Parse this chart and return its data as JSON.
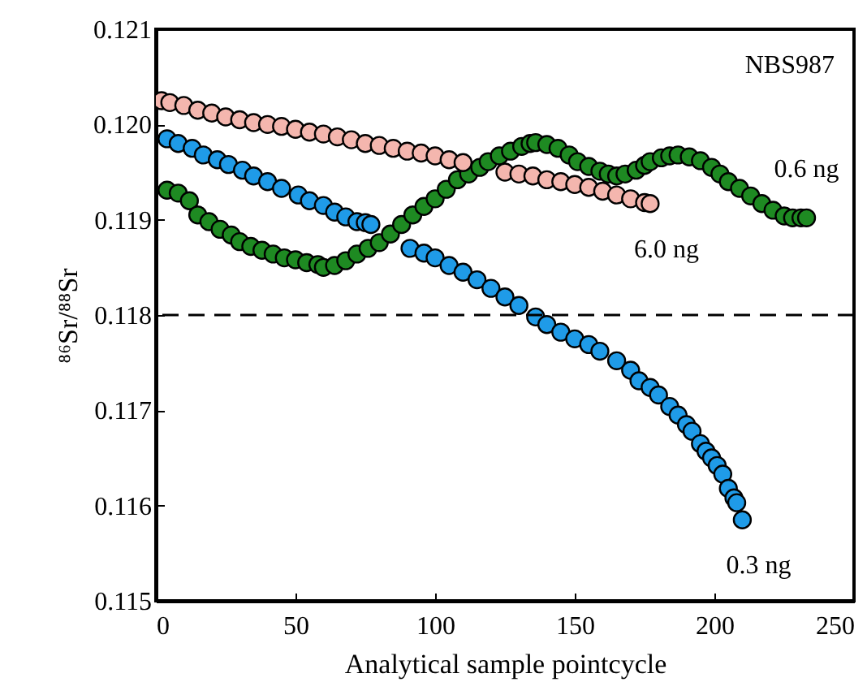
{
  "chart_data": {
    "type": "scatter",
    "xlabel": "Analytical sample pointcycle",
    "ylabel": "⁸⁶Sr/⁸⁸Sr",
    "annotations": [
      "NBS987"
    ],
    "xlim": [
      0,
      250
    ],
    "xticks": [
      0,
      50,
      100,
      150,
      200,
      250
    ],
    "ylim": [
      0.115,
      0.121
    ],
    "yticks": [
      0.115,
      0.116,
      0.117,
      0.118,
      0.119,
      {
        "value": 0.12,
        "label": "0.120"
      },
      0.121
    ],
    "grid": false,
    "marker": "circle",
    "ref_lines": [
      {
        "axis": "y",
        "value": 0.118,
        "line_style": "dashed",
        "color": "#000000"
      }
    ],
    "series": [
      {
        "name": "0.6 ng",
        "color": "#1e8a22",
        "x": [
          4,
          8,
          12,
          15,
          19,
          23,
          27,
          30,
          34,
          38,
          42,
          46,
          50,
          54,
          58,
          60,
          64,
          68,
          72,
          76,
          80,
          84,
          88,
          92,
          96,
          100,
          104,
          108,
          112,
          116,
          119,
          123,
          127,
          131,
          134,
          136,
          140,
          144,
          148,
          151,
          155,
          159,
          162,
          165,
          168,
          172,
          175,
          177,
          181,
          184,
          187,
          191,
          195,
          199,
          202,
          205,
          209,
          213,
          217,
          221,
          225,
          228,
          231,
          233
        ],
        "values": [
          0.11931,
          0.11928,
          0.1192,
          0.11905,
          0.11898,
          0.1189,
          0.11884,
          0.11877,
          0.11872,
          0.11868,
          0.11864,
          0.1186,
          0.11858,
          0.11855,
          0.11853,
          0.1185,
          0.11852,
          0.11857,
          0.11864,
          0.1187,
          0.11876,
          0.11885,
          0.11895,
          0.11905,
          0.11914,
          0.11922,
          0.11932,
          0.11942,
          0.11948,
          0.11955,
          0.11961,
          0.11967,
          0.11972,
          0.11977,
          0.1198,
          0.11981,
          0.11979,
          0.11975,
          0.11968,
          0.11961,
          0.11956,
          0.11951,
          0.11948,
          0.11946,
          0.11948,
          0.11952,
          0.11957,
          0.11961,
          0.11965,
          0.11967,
          0.11968,
          0.11966,
          0.11962,
          0.11955,
          0.11948,
          0.1194,
          0.11933,
          0.11925,
          0.11917,
          0.1191,
          0.11904,
          0.11902,
          0.11902,
          0.11902
        ]
      },
      {
        "name": "6.0 ng",
        "color": "#f4b6ae",
        "x": [
          2,
          5,
          10,
          15,
          20,
          25,
          30,
          35,
          40,
          45,
          50,
          55,
          60,
          65,
          70,
          75,
          80,
          85,
          90,
          95,
          100,
          105,
          110,
          125,
          130,
          135,
          140,
          145,
          150,
          155,
          160,
          165,
          170,
          175,
          177
        ],
        "values": [
          0.12025,
          0.12023,
          0.1202,
          0.12015,
          0.12012,
          0.12008,
          0.12005,
          0.12002,
          0.12,
          0.11998,
          0.11995,
          0.11992,
          0.1199,
          0.11987,
          0.11984,
          0.1198,
          0.11978,
          0.11975,
          0.11972,
          0.1197,
          0.11967,
          0.11963,
          0.1196,
          0.1195,
          0.11948,
          0.11946,
          0.11942,
          0.1194,
          0.11937,
          0.11934,
          0.1193,
          0.11926,
          0.11922,
          0.11918,
          0.11917
        ]
      },
      {
        "name": "0.3 ng",
        "color": "#1f9be8",
        "x": [
          4,
          8,
          13,
          17,
          22,
          26,
          31,
          35,
          40,
          45,
          51,
          55,
          60,
          64,
          68,
          72,
          75,
          77,
          91,
          96,
          100,
          105,
          110,
          115,
          120,
          125,
          130,
          136,
          140,
          145,
          150,
          155,
          159,
          165,
          170,
          173,
          177,
          180,
          184,
          187,
          190,
          192,
          195,
          197,
          199,
          201,
          203,
          205,
          207,
          208,
          210
        ],
        "values": [
          0.11985,
          0.1198,
          0.11975,
          0.11968,
          0.11963,
          0.11958,
          0.11952,
          0.11946,
          0.1194,
          0.11933,
          0.11926,
          0.1192,
          0.11915,
          0.11908,
          0.11903,
          0.11898,
          0.11897,
          0.11895,
          0.1187,
          0.11865,
          0.1186,
          0.11852,
          0.11845,
          0.11837,
          0.11828,
          0.11819,
          0.1181,
          0.11798,
          0.1179,
          0.11782,
          0.11775,
          0.11769,
          0.11762,
          0.11752,
          0.11742,
          0.11731,
          0.11724,
          0.11716,
          0.11704,
          0.11695,
          0.11685,
          0.11678,
          0.11665,
          0.11657,
          0.1165,
          0.11642,
          0.11633,
          0.11618,
          0.11608,
          0.11603,
          0.11585
        ]
      }
    ]
  }
}
